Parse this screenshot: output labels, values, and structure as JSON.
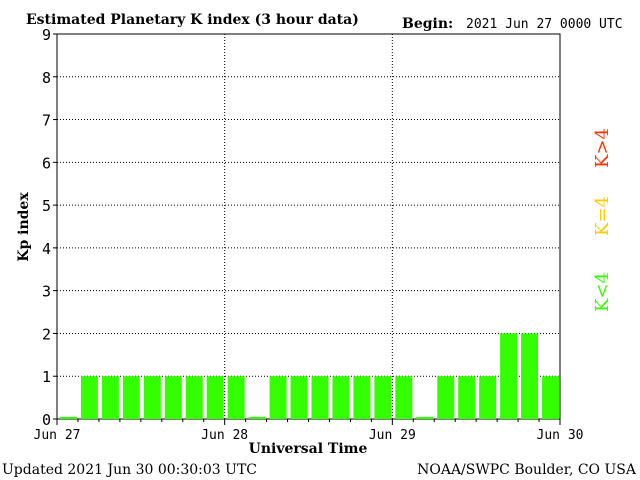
{
  "header": {
    "title": "Estimated Planetary K index (3 hour data)",
    "begin_label": "Begin:",
    "begin_value": "2021 Jun 27 0000 UTC"
  },
  "footer": {
    "updated": "Updated 2021 Jun 30 00:30:03 UTC",
    "credit": "NOAA/SWPC Boulder, CO USA"
  },
  "legend": {
    "high": "K>4",
    "equal": "K=4",
    "low": "K<4",
    "colors": {
      "high": "#ff3300",
      "equal": "#ffcc00",
      "low": "#33ff00"
    },
    "placement": "right"
  },
  "chart_data": {
    "type": "bar",
    "xlabel": "Universal Time",
    "ylabel": "Kp index",
    "ylim": [
      0,
      9
    ],
    "y_ticks": [
      "0",
      "1",
      "2",
      "3",
      "4",
      "5",
      "6",
      "7",
      "8",
      "9"
    ],
    "x_ticks": [
      "Jun 27",
      "Jun 28",
      "Jun 29",
      "Jun 30"
    ],
    "grid": "dotted",
    "interval_hours": 3,
    "values": [
      0.05,
      1,
      1,
      1,
      1,
      1,
      1,
      1,
      1,
      0.05,
      1,
      1,
      1,
      1,
      1,
      1,
      1,
      0.05,
      1,
      1,
      1,
      2,
      2,
      1
    ],
    "bar_color": "#33ff00"
  }
}
